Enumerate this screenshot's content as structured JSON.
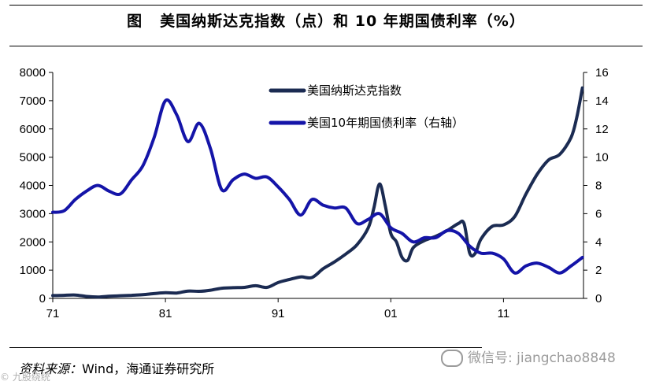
{
  "title": {
    "fig": "图",
    "text": "美国纳斯达克指数（点）和 10 年期国债利率（%）"
  },
  "source": {
    "label": "资料来源：",
    "text": "Wind，海通证券研究所"
  },
  "watermark": {
    "text": "微信号: jiangchao8848",
    "icon": "wechat-icon"
  },
  "corner_logo": "© 九股绕统",
  "colors": {
    "nasdaq": "#1b2b52",
    "yield": "#1414a8"
  },
  "chart_data": {
    "type": "line",
    "title": "美国纳斯达克指数（点）和 10 年期国债利率（%）",
    "x_ticks": [
      "71",
      "81",
      "91",
      "01",
      "11"
    ],
    "x_tick_years": [
      1971,
      1981,
      1991,
      2001,
      2011
    ],
    "xlim": [
      1971,
      2018.1
    ],
    "y_left": {
      "ticks": [
        "0",
        "1000",
        "2000",
        "3000",
        "4000",
        "5000",
        "6000",
        "7000",
        "8000"
      ],
      "ylim": [
        0,
        8000
      ]
    },
    "y_right": {
      "ticks": [
        "0",
        "2",
        "4",
        "6",
        "8",
        "10",
        "12",
        "14",
        "16"
      ],
      "ylim": [
        0,
        16
      ]
    },
    "legend_position": "top-center",
    "grid": false,
    "series": [
      {
        "name": "美国纳斯达克指数",
        "axis": "left",
        "x": [
          1971,
          1972,
          1973,
          1974,
          1975,
          1976,
          1977,
          1978,
          1979,
          1980,
          1981,
          1982,
          1983,
          1984,
          1985,
          1986,
          1987,
          1988,
          1989,
          1990,
          1991,
          1992,
          1993,
          1994,
          1995,
          1996,
          1997,
          1998,
          1999,
          1999.5,
          2000,
          2000.5,
          2001,
          2001.5,
          2002,
          2002.5,
          2003,
          2004,
          2005,
          2006,
          2007,
          2007.5,
          2008,
          2008.5,
          2009,
          2010,
          2011,
          2012,
          2013,
          2014,
          2015,
          2016,
          2017,
          2017.5,
          2018
        ],
        "values": [
          100,
          110,
          120,
          70,
          50,
          75,
          95,
          110,
          130,
          170,
          200,
          190,
          260,
          250,
          290,
          360,
          380,
          390,
          450,
          390,
          560,
          670,
          760,
          740,
          1050,
          1290,
          1570,
          1900,
          2500,
          3200,
          4050,
          3300,
          2300,
          2000,
          1450,
          1350,
          1800,
          2050,
          2200,
          2400,
          2650,
          2650,
          1600,
          1600,
          2100,
          2550,
          2600,
          2900,
          3700,
          4400,
          4900,
          5100,
          5700,
          6400,
          7450
        ]
      },
      {
        "name": "美国10年期国债利率（右轴）",
        "axis": "right",
        "x": [
          1971,
          1972,
          1973,
          1974,
          1975,
          1976,
          1977,
          1978,
          1979,
          1980,
          1981,
          1982,
          1983,
          1984,
          1985,
          1986,
          1987,
          1988,
          1989,
          1990,
          1991,
          1992,
          1993,
          1994,
          1995,
          1996,
          1997,
          1998,
          1999,
          2000,
          2001,
          2002,
          2003,
          2004,
          2005,
          2006,
          2007,
          2008,
          2009,
          2010,
          2011,
          2012,
          2013,
          2014,
          2015,
          2016,
          2017,
          2018
        ],
        "values": [
          6.1,
          6.2,
          7.0,
          7.6,
          8.0,
          7.6,
          7.4,
          8.4,
          9.4,
          11.4,
          14.0,
          13.0,
          11.1,
          12.4,
          10.6,
          7.7,
          8.4,
          8.8,
          8.5,
          8.6,
          7.9,
          7.0,
          5.9,
          7.0,
          6.6,
          6.4,
          6.4,
          5.3,
          5.6,
          6.0,
          5.0,
          4.6,
          4.0,
          4.3,
          4.3,
          4.8,
          4.6,
          3.7,
          3.2,
          3.2,
          2.8,
          1.8,
          2.3,
          2.5,
          2.2,
          1.8,
          2.3,
          2.9
        ]
      }
    ]
  }
}
